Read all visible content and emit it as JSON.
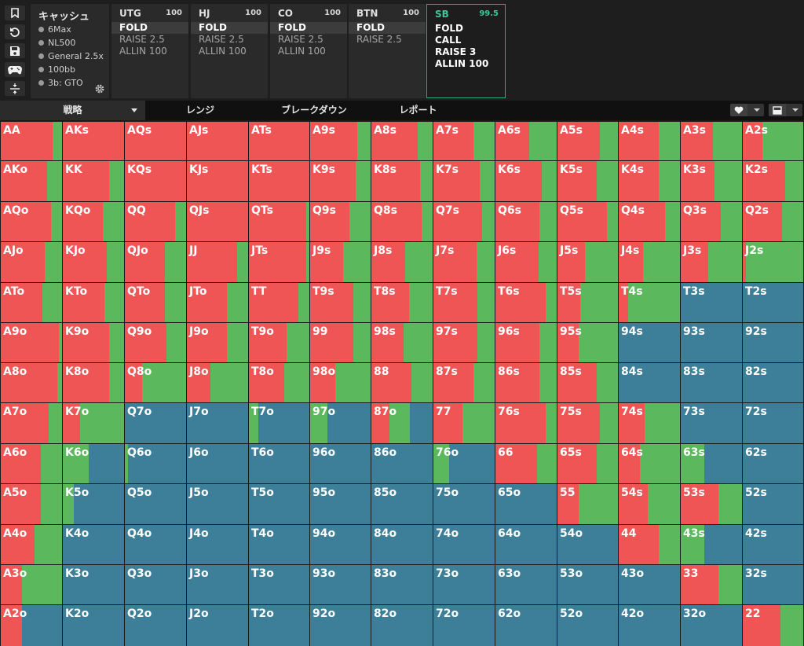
{
  "colors": {
    "raise": "#f05555",
    "call": "#5cb85c",
    "fold": "#3d7f98",
    "accent": "#3cc79a"
  },
  "toolbar_icons": [
    "bookmark-icon",
    "history-icon",
    "save-icon",
    "gamepad-icon",
    "collapse-icon"
  ],
  "game_info": {
    "title": "キャッシュ",
    "lines": [
      "6Max",
      "NL500",
      "General 2.5x",
      "100bb",
      "3b: GTO"
    ]
  },
  "positions": [
    {
      "name": "UTG",
      "stack": "100",
      "actions": [
        "FOLD",
        "RAISE 2.5",
        "ALLIN 100"
      ],
      "selected": 0
    },
    {
      "name": "HJ",
      "stack": "100",
      "actions": [
        "FOLD",
        "RAISE 2.5",
        "ALLIN 100"
      ],
      "selected": 0
    },
    {
      "name": "CO",
      "stack": "100",
      "actions": [
        "FOLD",
        "RAISE 2.5",
        "ALLIN 100"
      ],
      "selected": 0
    },
    {
      "name": "BTN",
      "stack": "100",
      "actions": [
        "FOLD",
        "RAISE 2.5"
      ],
      "selected": 0
    },
    {
      "name": "SB",
      "stack": "99.5",
      "actions": [
        "FOLD",
        "CALL",
        "RAISE 3",
        "ALLIN 100"
      ],
      "selected": -1,
      "active": true
    }
  ],
  "tabs": [
    "戦略",
    "レンジ",
    "ブレークダウン",
    "レポート"
  ],
  "tools": [
    "heart-icon",
    "layout-icon"
  ],
  "grid": {
    "rows": [
      [
        "AA",
        "AKs",
        "AQs",
        "AJs",
        "ATs",
        "A9s",
        "A8s",
        "A7s",
        "A6s",
        "A5s",
        "A4s",
        "A3s",
        "A2s"
      ],
      [
        "AKo",
        "KK",
        "KQs",
        "KJs",
        "KTs",
        "K9s",
        "K8s",
        "K7s",
        "K6s",
        "K5s",
        "K4s",
        "K3s",
        "K2s"
      ],
      [
        "AQo",
        "KQo",
        "QQ",
        "QJs",
        "QTs",
        "Q9s",
        "Q8s",
        "Q7s",
        "Q6s",
        "Q5s",
        "Q4s",
        "Q3s",
        "Q2s"
      ],
      [
        "AJo",
        "KJo",
        "QJo",
        "JJ",
        "JTs",
        "J9s",
        "J8s",
        "J7s",
        "J6s",
        "J5s",
        "J4s",
        "J3s",
        "J2s"
      ],
      [
        "ATo",
        "KTo",
        "QTo",
        "JTo",
        "TT",
        "T9s",
        "T8s",
        "T7s",
        "T6s",
        "T5s",
        "T4s",
        "T3s",
        "T2s"
      ],
      [
        "A9o",
        "K9o",
        "Q9o",
        "J9o",
        "T9o",
        "99",
        "98s",
        "97s",
        "96s",
        "95s",
        "94s",
        "93s",
        "92s"
      ],
      [
        "A8o",
        "K8o",
        "Q8o",
        "J8o",
        "T8o",
        "98o",
        "88",
        "87s",
        "86s",
        "85s",
        "84s",
        "83s",
        "82s"
      ],
      [
        "A7o",
        "K7o",
        "Q7o",
        "J7o",
        "T7o",
        "97o",
        "87o",
        "77",
        "76s",
        "75s",
        "74s",
        "73s",
        "72s"
      ],
      [
        "A6o",
        "K6o",
        "Q6o",
        "J6o",
        "T6o",
        "96o",
        "86o",
        "76o",
        "66",
        "65s",
        "64s",
        "63s",
        "62s"
      ],
      [
        "A5o",
        "K5o",
        "Q5o",
        "J5o",
        "T5o",
        "95o",
        "85o",
        "75o",
        "65o",
        "55",
        "54s",
        "53s",
        "52s"
      ],
      [
        "A4o",
        "K4o",
        "Q4o",
        "J4o",
        "T4o",
        "94o",
        "84o",
        "74o",
        "64o",
        "54o",
        "44",
        "43s",
        "42s"
      ],
      [
        "A3o",
        "K3o",
        "Q3o",
        "J3o",
        "T3o",
        "93o",
        "83o",
        "73o",
        "63o",
        "53o",
        "43o",
        "33",
        "32s"
      ],
      [
        "A2o",
        "K2o",
        "Q2o",
        "J2o",
        "T2o",
        "92o",
        "82o",
        "72o",
        "62o",
        "52o",
        "42o",
        "32o",
        "22"
      ]
    ],
    "mix": [
      [
        [
          0.85,
          0.15,
          0
        ],
        [
          1,
          0,
          0
        ],
        [
          1,
          0,
          0
        ],
        [
          1,
          0,
          0
        ],
        [
          1,
          0,
          0
        ],
        [
          0.78,
          0.22,
          0
        ],
        [
          0.75,
          0.25,
          0
        ],
        [
          0.65,
          0.35,
          0
        ],
        [
          0.55,
          0.45,
          0
        ],
        [
          0.7,
          0.3,
          0
        ],
        [
          0.65,
          0.35,
          0
        ],
        [
          0.52,
          0.48,
          0
        ],
        [
          0.33,
          0.67,
          0
        ]
      ],
      [
        [
          0.75,
          0.25,
          0
        ],
        [
          0.75,
          0.25,
          0
        ],
        [
          1,
          0,
          0
        ],
        [
          1,
          0,
          0
        ],
        [
          1,
          0,
          0
        ],
        [
          0.75,
          0.25,
          0
        ],
        [
          0.8,
          0.2,
          0
        ],
        [
          0.75,
          0.25,
          0
        ],
        [
          0.75,
          0.25,
          0
        ],
        [
          0.65,
          0.35,
          0
        ],
        [
          0.65,
          0.35,
          0
        ],
        [
          0.55,
          0.45,
          0
        ],
        [
          0.7,
          0.3,
          0
        ]
      ],
      [
        [
          0.82,
          0.18,
          0
        ],
        [
          0.65,
          0.35,
          0
        ],
        [
          0.82,
          0.18,
          0
        ],
        [
          1,
          0,
          0
        ],
        [
          0.95,
          0.05,
          0
        ],
        [
          0.65,
          0.35,
          0
        ],
        [
          0.82,
          0.18,
          0
        ],
        [
          0.8,
          0.2,
          0
        ],
        [
          0.72,
          0.28,
          0
        ],
        [
          0.82,
          0.18,
          0
        ],
        [
          0.75,
          0.25,
          0
        ],
        [
          0.65,
          0.35,
          0
        ],
        [
          0.65,
          0.35,
          0
        ]
      ],
      [
        [
          0.72,
          0.28,
          0
        ],
        [
          0.72,
          0.28,
          0
        ],
        [
          0.65,
          0.35,
          0
        ],
        [
          0.82,
          0.18,
          0
        ],
        [
          0.95,
          0.05,
          0
        ],
        [
          0.55,
          0.45,
          0
        ],
        [
          0.55,
          0.45,
          0
        ],
        [
          0.7,
          0.3,
          0
        ],
        [
          0.7,
          0.3,
          0
        ],
        [
          0.45,
          0.55,
          0
        ],
        [
          0.4,
          0.6,
          0
        ],
        [
          0.45,
          0.55,
          0
        ],
        [
          0.05,
          0.95,
          0
        ]
      ],
      [
        [
          0.68,
          0.32,
          0
        ],
        [
          0.68,
          0.32,
          0
        ],
        [
          0.65,
          0.35,
          0
        ],
        [
          0.65,
          0.35,
          0
        ],
        [
          0.82,
          0.18,
          0
        ],
        [
          0.72,
          0.28,
          0
        ],
        [
          0.62,
          0.38,
          0
        ],
        [
          0.72,
          0.28,
          0
        ],
        [
          0.82,
          0.18,
          0
        ],
        [
          0.38,
          0.62,
          0
        ],
        [
          0.15,
          0.85,
          0
        ],
        [
          0,
          0,
          1
        ],
        [
          0,
          0,
          1
        ]
      ],
      [
        [
          0.95,
          0.05,
          0
        ],
        [
          0.75,
          0.25,
          0
        ],
        [
          0.68,
          0.32,
          0
        ],
        [
          0.65,
          0.35,
          0
        ],
        [
          0.62,
          0.38,
          0
        ],
        [
          0.72,
          0.28,
          0
        ],
        [
          0.52,
          0.48,
          0
        ],
        [
          0.72,
          0.28,
          0
        ],
        [
          0.72,
          0.28,
          0
        ],
        [
          0.35,
          0.65,
          0
        ],
        [
          0,
          0,
          1
        ],
        [
          0,
          0,
          1
        ],
        [
          0,
          0,
          1
        ]
      ],
      [
        [
          0.92,
          0.08,
          0
        ],
        [
          0.75,
          0.25,
          0
        ],
        [
          0.28,
          0.72,
          0
        ],
        [
          0.38,
          0.62,
          0
        ],
        [
          0.58,
          0.42,
          0
        ],
        [
          0.42,
          0.58,
          0
        ],
        [
          0.65,
          0.35,
          0
        ],
        [
          0.65,
          0.35,
          0
        ],
        [
          0.72,
          0.28,
          0
        ],
        [
          0.65,
          0.35,
          0
        ],
        [
          0,
          0,
          1
        ],
        [
          0,
          0,
          1
        ],
        [
          0,
          0,
          1
        ]
      ],
      [
        [
          0.78,
          0.22,
          0
        ],
        [
          0.28,
          0.72,
          0
        ],
        [
          0,
          0,
          1
        ],
        [
          0,
          0,
          1
        ],
        [
          0,
          0.15,
          0.85
        ],
        [
          0,
          0.28,
          0.72
        ],
        [
          0.3,
          0.33,
          0.37
        ],
        [
          0.48,
          0.52,
          0
        ],
        [
          0.82,
          0.18,
          0
        ],
        [
          0.7,
          0.3,
          0
        ],
        [
          0.42,
          0.58,
          0
        ],
        [
          0,
          0,
          1
        ],
        [
          0,
          0,
          1
        ]
      ],
      [
        [
          0.65,
          0.35,
          0
        ],
        [
          0,
          0.42,
          0.58
        ],
        [
          0,
          0.05,
          0.95
        ],
        [
          0,
          0,
          1
        ],
        [
          0,
          0,
          1
        ],
        [
          0,
          0,
          1
        ],
        [
          0,
          0,
          1
        ],
        [
          0,
          0.25,
          0.75
        ],
        [
          0.68,
          0.32,
          0
        ],
        [
          0.65,
          0.35,
          0
        ],
        [
          0.35,
          0.65,
          0
        ],
        [
          0,
          0.38,
          0.62
        ],
        [
          0,
          0,
          1
        ]
      ],
      [
        [
          0.65,
          0.35,
          0
        ],
        [
          0,
          0.18,
          0.82
        ],
        [
          0,
          0,
          1
        ],
        [
          0,
          0,
          1
        ],
        [
          0,
          0,
          1
        ],
        [
          0,
          0,
          1
        ],
        [
          0,
          0,
          1
        ],
        [
          0,
          0,
          1
        ],
        [
          0,
          0,
          1
        ],
        [
          0.35,
          0.65,
          0
        ],
        [
          0.48,
          0.52,
          0
        ],
        [
          0.62,
          0.38,
          0
        ],
        [
          0,
          0,
          1
        ]
      ],
      [
        [
          0.55,
          0.45,
          0
        ],
        [
          0,
          0,
          1
        ],
        [
          0,
          0,
          1
        ],
        [
          0,
          0,
          1
        ],
        [
          0,
          0,
          1
        ],
        [
          0,
          0,
          1
        ],
        [
          0,
          0,
          1
        ],
        [
          0,
          0,
          1
        ],
        [
          0,
          0,
          1
        ],
        [
          0,
          0,
          1
        ],
        [
          0.65,
          0.35,
          0
        ],
        [
          0,
          0.38,
          0.62
        ],
        [
          0,
          0,
          1
        ]
      ],
      [
        [
          0.35,
          0.65,
          0
        ],
        [
          0,
          0,
          1
        ],
        [
          0,
          0,
          1
        ],
        [
          0,
          0,
          1
        ],
        [
          0,
          0,
          1
        ],
        [
          0,
          0,
          1
        ],
        [
          0,
          0,
          1
        ],
        [
          0,
          0,
          1
        ],
        [
          0,
          0,
          1
        ],
        [
          0,
          0,
          1
        ],
        [
          0,
          0,
          1
        ],
        [
          0.62,
          0.38,
          0
        ],
        [
          0,
          0,
          1
        ]
      ],
      [
        [
          0.35,
          0,
          0.65
        ],
        [
          0,
          0,
          1
        ],
        [
          0,
          0,
          1
        ],
        [
          0,
          0,
          1
        ],
        [
          0,
          0,
          1
        ],
        [
          0,
          0,
          1
        ],
        [
          0,
          0,
          1
        ],
        [
          0,
          0,
          1
        ],
        [
          0,
          0,
          1
        ],
        [
          0,
          0,
          1
        ],
        [
          0,
          0,
          1
        ],
        [
          0,
          0,
          1
        ],
        [
          0.62,
          0.38,
          0
        ]
      ]
    ]
  }
}
